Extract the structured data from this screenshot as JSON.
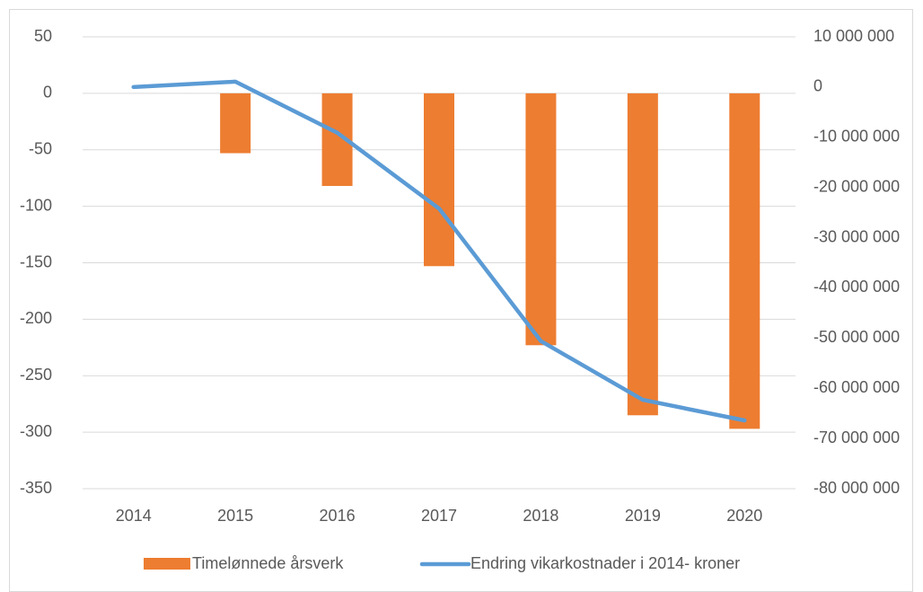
{
  "chart_data": {
    "type": "bar-line",
    "categories": [
      "2014",
      "2015",
      "2016",
      "2017",
      "2018",
      "2019",
      "2020"
    ],
    "series": [
      {
        "name": "Timelønnede årsverk",
        "type": "bar",
        "color": "#ed7d31",
        "values": [
          0,
          -53,
          -82,
          -153,
          -223,
          -285,
          -297
        ]
      },
      {
        "name": "Endring vikarkostnader i 2014- kroner",
        "type": "line",
        "axis": "y2",
        "color": "#5b9bd5",
        "values": [
          0,
          1070000,
          -9100000,
          -24200000,
          -50600000,
          -62300000,
          -66400000
        ]
      }
    ],
    "ylim": [
      -350,
      50
    ],
    "yticks": [
      50,
      0,
      -50,
      -100,
      -150,
      -200,
      -250,
      -300,
      -350
    ],
    "y2lim": [
      -80000000,
      10000000
    ],
    "y2ticks": [
      {
        "value": 10000000,
        "label": "10 000 000"
      },
      0,
      {
        "value": -10000000,
        "label": "-10 000 000"
      },
      {
        "value": -20000000,
        "label": "-20 000 000"
      },
      {
        "value": -30000000,
        "label": "-30 000 000"
      },
      {
        "value": -40000000,
        "label": "-40 000 000"
      },
      {
        "value": -50000000,
        "label": "-50 000 000"
      },
      {
        "value": -60000000,
        "label": "-60 000 000"
      },
      {
        "value": -70000000,
        "label": "-70 000 000"
      },
      {
        "value": -80000000,
        "label": "-80 000 000"
      }
    ],
    "grid": true,
    "legend": "bottom"
  }
}
